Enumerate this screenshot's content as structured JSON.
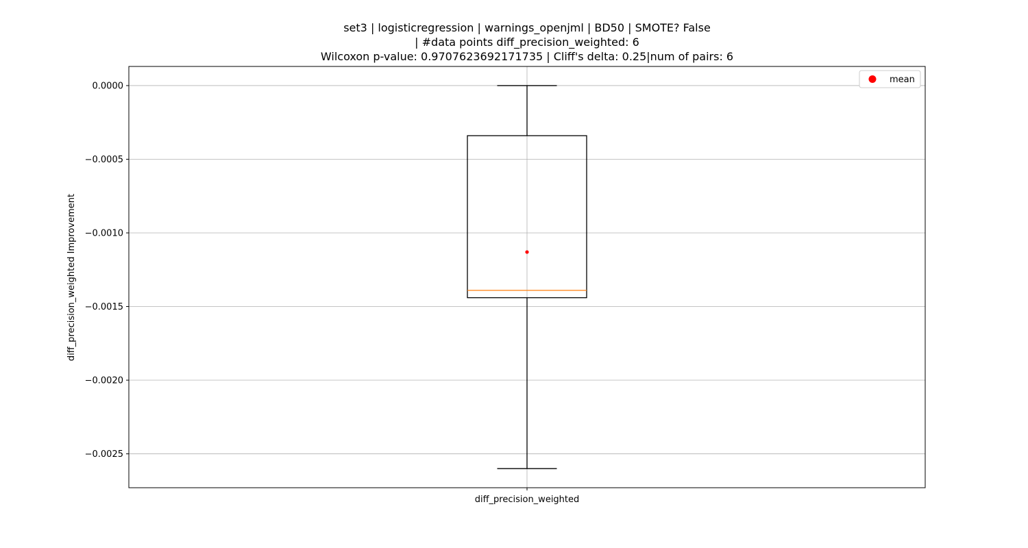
{
  "chart_data": {
    "type": "box",
    "title_lines": [
      "set3 | logisticregression | warnings_openjml | BD50 | SMOTE? False",
      "| #data points diff_precision_weighted: 6",
      "Wilcoxon p-value: 0.9707623692171735 | Cliff's delta: 0.25|num of pairs: 6"
    ],
    "xlabel": "",
    "ylabel": "diff_precision_weighted Improvement",
    "categories": [
      "diff_precision_weighted"
    ],
    "ylim": [
      -0.00273,
      0.00013
    ],
    "yticks": [
      0.0,
      -0.0005,
      -0.001,
      -0.0015,
      -0.002,
      -0.0025
    ],
    "ytick_labels": [
      "0.0000",
      "−0.0005",
      "−0.0010",
      "−0.0015",
      "−0.0020",
      "−0.0025"
    ],
    "grid": true,
    "boxes": [
      {
        "category": "diff_precision_weighted",
        "whisker_high": 0.0,
        "q3": -0.00034,
        "median": -0.00139,
        "q1": -0.00144,
        "whisker_low": -0.0026,
        "mean": -0.00113
      }
    ],
    "legend": {
      "position": "top-right",
      "entries": [
        {
          "label": "mean",
          "color": "#ff0000",
          "marker": "circle"
        }
      ]
    },
    "colors": {
      "box": "#000000",
      "median": "#ff7f0e",
      "mean": "#ff0000",
      "grid": "#b0b0b0"
    }
  }
}
